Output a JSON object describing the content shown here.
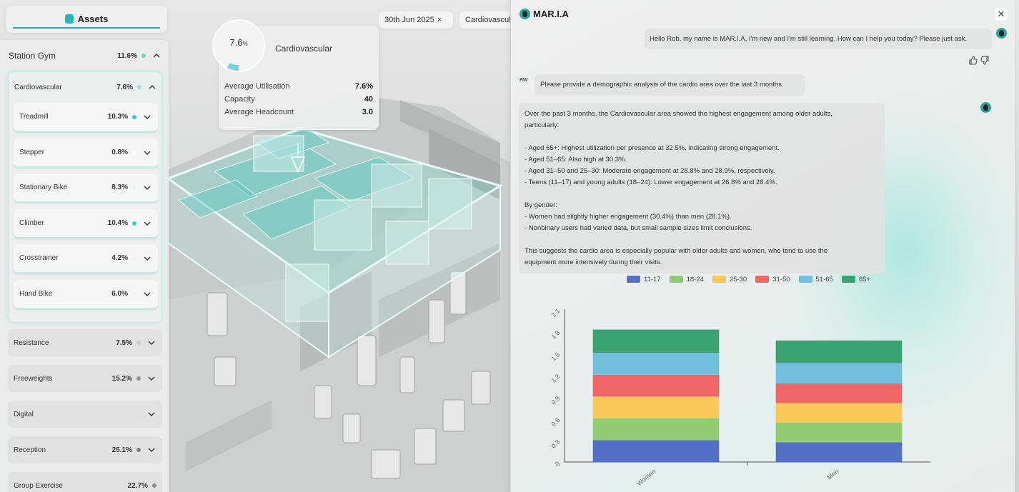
{
  "assets_tab": {
    "label": "Assets"
  },
  "left_panel": {
    "station": {
      "name": "Station Gym",
      "value": "11.6%"
    },
    "cardio": {
      "name": "Cardiovascular",
      "value": "7.6%"
    },
    "sub_items": [
      {
        "name": "Treadmill",
        "value": "10.3%",
        "dot_color": "#45c9c0"
      },
      {
        "name": "Stepper",
        "value": "0.8%",
        "dot_color": "#ffffff"
      },
      {
        "name": "Stationary Bike",
        "value": "8.3%",
        "dot_color": "#e8f7f6"
      },
      {
        "name": "Climber",
        "value": "10.4%",
        "dot_color": "#45c9c0"
      },
      {
        "name": "Crosstrainer",
        "value": "4.2%",
        "dot_color": "#f2f4f4"
      },
      {
        "name": "Hand Bike",
        "value": "6.0%",
        "dot_color": "#f2f4f4"
      }
    ],
    "categories": [
      {
        "name": "Resistance",
        "value": "7.5%",
        "dot_color": "#c9cccc"
      },
      {
        "name": "Freeweights",
        "value": "15.2%",
        "dot_color": "#8f9393"
      },
      {
        "name": "Digital",
        "value": "",
        "dot_color": ""
      },
      {
        "name": "Reception",
        "value": "25.1%",
        "dot_color": "#7d8080"
      },
      {
        "name": "Group Exercise",
        "value": "22.7%",
        "dot_color": "#8f9393"
      }
    ]
  },
  "info_card": {
    "gauge_value": "7.6",
    "gauge_unit": "%",
    "gauge_fraction": 0.076,
    "title": "Cardiovascular",
    "rows": [
      {
        "label": "Average Utilisation",
        "value": "7.6%"
      },
      {
        "label": "Capacity",
        "value": "40"
      },
      {
        "label": "Average Headcount",
        "value": "3.0"
      }
    ]
  },
  "chips": {
    "date": "30th Jun 2025",
    "date_close": "×",
    "filter": "Cardiovascular"
  },
  "maria": {
    "title": "MAR.I.A",
    "close": "✕",
    "greeting": "Hello Rob, my name is MAR.I.A, I'm new and I'm still learning. How can I help you today? Please just ask.",
    "user_initials": "RW",
    "user_message": "Please provide a demographic analysis of the cardio area over the last 3 months",
    "response_lines": [
      "Over the past 3 months, the Cardiovascular area showed the highest engagement among older adults,",
      "particularly:",
      "",
      "- Aged 65+: Highest utilization per presence at 32.5%, indicating strong engagement.",
      "- Aged 51–65: Also high at 30.3%.",
      "- Aged 31–50 and 25–30: Moderate engagement at 28.8% and 28.9%, respectively.",
      "- Teens (11–17) and young adults (18–24): Lower engagement at 26.8% and 28.4%.",
      "",
      "By gender:",
      "- Women had slightly higher engagement (30.4%) than men (28.1%).",
      "- Nonbinary users had varied data, but small sample sizes limit conclusions.",
      "",
      "This suggests the cardio area is especially popular with older adults and women, who tend to use the",
      "equipment more intensively during their visits."
    ]
  },
  "chart_data": {
    "type": "bar",
    "stacked": true,
    "categories": [
      "Women",
      "Men"
    ],
    "series": [
      {
        "name": "11-17",
        "color": "#5470c6",
        "values": [
          0.3,
          0.27
        ]
      },
      {
        "name": "18-24",
        "color": "#91cc75",
        "values": [
          0.3,
          0.27
        ]
      },
      {
        "name": "25-30",
        "color": "#fac858",
        "values": [
          0.3,
          0.27
        ]
      },
      {
        "name": "31-50",
        "color": "#ee6666",
        "values": [
          0.3,
          0.27
        ]
      },
      {
        "name": "51-65",
        "color": "#73c0de",
        "values": [
          0.3,
          0.28
        ]
      },
      {
        "name": "65+",
        "color": "#3ba272",
        "values": [
          0.32,
          0.31
        ]
      }
    ],
    "yticks": [
      "0",
      "0.3",
      "0.6",
      "0.9",
      "1.2",
      "1.5",
      "1.8",
      "2.1"
    ],
    "ylim": [
      0,
      2.1
    ],
    "legend_position": "top",
    "grid": false
  }
}
